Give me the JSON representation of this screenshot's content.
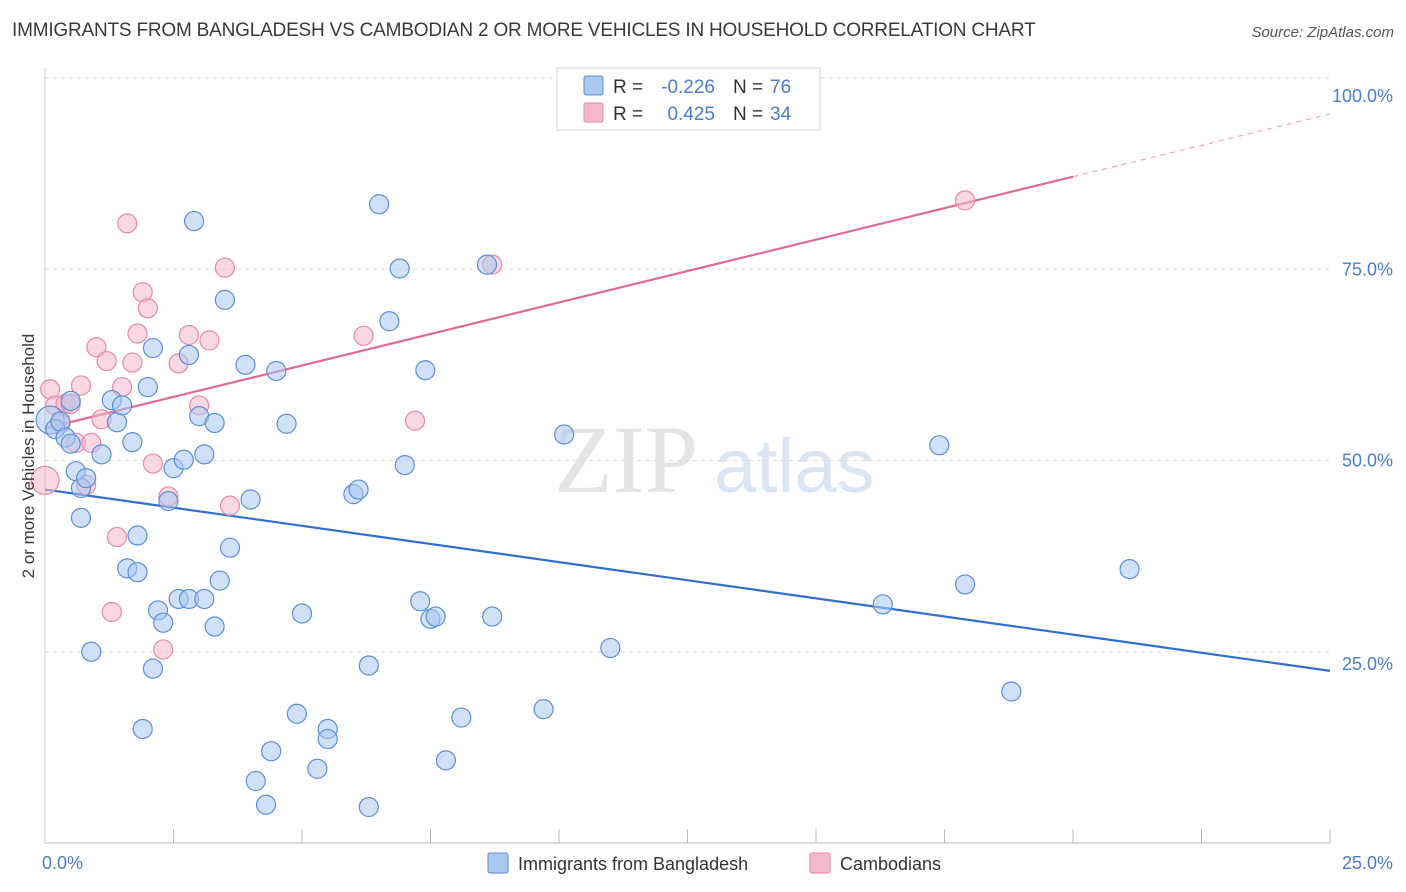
{
  "title": "IMMIGRANTS FROM BANGLADESH VS CAMBODIAN 2 OR MORE VEHICLES IN HOUSEHOLD CORRELATION CHART",
  "source": "Source: ZipAtlas.com",
  "watermark": {
    "zip": "ZIP",
    "atlas": "atlas"
  },
  "colors": {
    "blue_fill": "#a9c8f0",
    "blue_stroke": "#5b8fd6",
    "blue_line": "#2f6fd1",
    "pink_fill": "#f5b8ca",
    "pink_stroke": "#e58aa7",
    "pink_line": "#e06a93",
    "tick_text": "#4a7ec8",
    "grid": "#dddddd"
  },
  "legend_top": [
    {
      "r_label": "R = ",
      "r_value": "-0.226",
      "n_label": "N = ",
      "n_value": "76"
    },
    {
      "r_label": "R = ",
      "r_value": "0.425",
      "n_label": "N = ",
      "n_value": "34"
    }
  ],
  "chart_data": {
    "type": "scatter",
    "title": "IMMIGRANTS FROM BANGLADESH VS CAMBODIAN 2 OR MORE VEHICLES IN HOUSEHOLD CORRELATION CHART",
    "xlabel": "",
    "ylabel": "2 or more Vehicles in Household",
    "xlim": [
      0,
      25
    ],
    "ylim": [
      0,
      100
    ],
    "x_tick_labels": [
      "0.0%",
      "25.0%"
    ],
    "y_tick_values": [
      25,
      50,
      75,
      100
    ],
    "y_tick_labels": [
      "25.0%",
      "50.0%",
      "75.0%",
      "100.0%"
    ],
    "grid": true,
    "legend_position": "top-center",
    "series": [
      {
        "name": "Immigrants from Bangladesh",
        "trend": {
          "x": [
            0,
            25
          ],
          "y": [
            46.2,
            22.5
          ]
        },
        "points": [
          [
            0.1,
            55.3
          ],
          [
            0.2,
            54.1
          ],
          [
            0.3,
            55.1
          ],
          [
            0.4,
            53.0
          ],
          [
            0.5,
            52.2
          ],
          [
            0.5,
            57.8
          ],
          [
            0.6,
            48.6
          ],
          [
            0.7,
            46.4
          ],
          [
            0.7,
            42.5
          ],
          [
            0.8,
            47.7
          ],
          [
            1.1,
            50.8
          ],
          [
            1.3,
            57.9
          ],
          [
            1.4,
            55.0
          ],
          [
            1.5,
            57.2
          ],
          [
            1.6,
            35.9
          ],
          [
            1.7,
            52.4
          ],
          [
            1.8,
            40.2
          ],
          [
            1.8,
            35.4
          ],
          [
            1.9,
            14.9
          ],
          [
            2.0,
            59.6
          ],
          [
            2.1,
            22.8
          ],
          [
            2.1,
            64.7
          ],
          [
            2.2,
            30.4
          ],
          [
            2.3,
            28.8
          ],
          [
            2.4,
            44.7
          ],
          [
            2.5,
            49.0
          ],
          [
            2.6,
            31.9
          ],
          [
            2.7,
            50.1
          ],
          [
            2.8,
            31.9
          ],
          [
            2.8,
            63.8
          ],
          [
            2.9,
            81.3
          ],
          [
            3.0,
            55.8
          ],
          [
            3.1,
            50.8
          ],
          [
            3.1,
            31.9
          ],
          [
            3.3,
            54.9
          ],
          [
            3.3,
            28.3
          ],
          [
            3.4,
            34.3
          ],
          [
            3.5,
            71.0
          ],
          [
            3.6,
            38.6
          ],
          [
            3.9,
            62.5
          ],
          [
            4.0,
            44.9
          ],
          [
            4.1,
            8.1
          ],
          [
            4.3,
            5.0
          ],
          [
            4.4,
            12.0
          ],
          [
            4.5,
            61.7
          ],
          [
            4.7,
            54.8
          ],
          [
            4.9,
            16.9
          ],
          [
            5.3,
            9.7
          ],
          [
            5.5,
            14.9
          ],
          [
            5.5,
            13.6
          ],
          [
            6.0,
            45.6
          ],
          [
            6.1,
            46.2
          ],
          [
            6.3,
            23.2
          ],
          [
            6.3,
            4.7
          ],
          [
            6.5,
            83.5
          ],
          [
            6.7,
            68.2
          ],
          [
            6.9,
            75.1
          ],
          [
            7.0,
            49.4
          ],
          [
            7.3,
            31.6
          ],
          [
            7.4,
            61.8
          ],
          [
            7.5,
            29.3
          ],
          [
            7.6,
            29.6
          ],
          [
            7.8,
            10.8
          ],
          [
            8.1,
            16.4
          ],
          [
            8.6,
            75.6
          ],
          [
            8.7,
            29.6
          ],
          [
            9.7,
            17.5
          ],
          [
            10.1,
            53.4
          ],
          [
            11.0,
            25.5
          ],
          [
            16.3,
            31.2
          ],
          [
            17.4,
            52.0
          ],
          [
            17.9,
            33.8
          ],
          [
            18.8,
            19.8
          ],
          [
            21.1,
            35.8
          ],
          [
            0.9,
            25.0
          ],
          [
            5.0,
            30.0
          ]
        ]
      },
      {
        "name": "Cambodians",
        "trend": {
          "x": [
            0,
            20
          ],
          "y": [
            54.2,
            87.1
          ]
        },
        "trend_dashed": {
          "x": [
            20,
            25
          ],
          "y": [
            87.1,
            95.3
          ]
        },
        "points": [
          [
            0.0,
            47.4
          ],
          [
            0.1,
            59.3
          ],
          [
            0.2,
            57.2
          ],
          [
            0.3,
            54.8
          ],
          [
            0.4,
            57.4
          ],
          [
            0.5,
            57.4
          ],
          [
            0.6,
            52.3
          ],
          [
            0.7,
            59.8
          ],
          [
            0.8,
            46.8
          ],
          [
            0.9,
            52.3
          ],
          [
            1.0,
            64.8
          ],
          [
            1.1,
            55.4
          ],
          [
            1.2,
            63.0
          ],
          [
            1.3,
            30.2
          ],
          [
            1.4,
            40.0
          ],
          [
            1.5,
            59.6
          ],
          [
            1.6,
            81.0
          ],
          [
            1.7,
            62.8
          ],
          [
            1.8,
            66.6
          ],
          [
            1.9,
            72.0
          ],
          [
            2.0,
            69.9
          ],
          [
            2.1,
            49.6
          ],
          [
            2.3,
            25.3
          ],
          [
            2.4,
            45.3
          ],
          [
            2.6,
            62.7
          ],
          [
            2.8,
            66.4
          ],
          [
            3.0,
            57.2
          ],
          [
            3.2,
            65.7
          ],
          [
            3.5,
            75.2
          ],
          [
            3.6,
            44.1
          ],
          [
            6.2,
            66.3
          ],
          [
            7.2,
            55.2
          ],
          [
            8.7,
            75.6
          ],
          [
            17.9,
            84.0
          ]
        ]
      }
    ]
  }
}
